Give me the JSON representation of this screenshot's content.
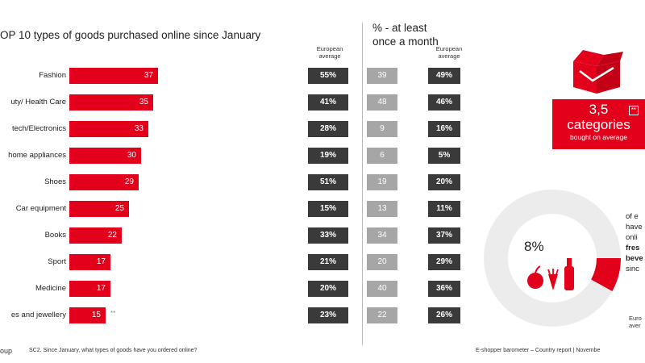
{
  "title": "OP 10 types of goods purchased online since January",
  "freq_title_line1": "% - at least",
  "freq_title_line2": "once a month",
  "eu_header_line1": "European",
  "eu_header_line2": "average",
  "colors": {
    "accent": "#e3001b",
    "dark": "#3a3a3a",
    "grey": "#a6a6a6"
  },
  "chart_data": {
    "type": "bar",
    "orientation": "horizontal",
    "categories": [
      "Fashion",
      "uty/ Health Care",
      "tech/Electronics",
      "home appliances",
      "Shoes",
      "Car equipment",
      "Books",
      "Sport",
      "Medicine",
      "es and jewellery"
    ],
    "values": [
      37,
      35,
      33,
      30,
      29,
      25,
      22,
      17,
      17,
      15
    ],
    "value_labels": [
      "37",
      "35",
      "33",
      "30",
      "29",
      "25",
      "22",
      "17",
      "17",
      "15"
    ],
    "xlim": [
      0,
      50
    ],
    "last_marker": "**",
    "european_average": [
      "55%",
      "41%",
      "28%",
      "19%",
      "51%",
      "15%",
      "33%",
      "21%",
      "20%",
      "23%"
    ],
    "monthly_values": [
      39,
      48,
      9,
      6,
      19,
      13,
      34,
      20,
      40,
      22
    ],
    "monthly_labels": [
      "39",
      "48",
      "9",
      "6",
      "19",
      "13",
      "34",
      "20",
      "40",
      "22"
    ],
    "monthly_eu_average": [
      "49%",
      "46%",
      "16%",
      "5%",
      "20%",
      "11%",
      "37%",
      "29%",
      "36%",
      "26%"
    ]
  },
  "categories_box": {
    "number": "3,5",
    "word": "categories",
    "sub": "bought on average",
    "marker": "**"
  },
  "fresh": {
    "value": 8,
    "label": "8%",
    "text_lines": [
      "of e",
      "have",
      "onli",
      "fres",
      "beve",
      "sinc"
    ],
    "eu_lines": [
      "Euro",
      "aver"
    ]
  },
  "footer": {
    "left": "oup",
    "question": "SC2. Since January, what types of goods have you ordered online?",
    "right": "E-shopper barometer – Country report | Novembe"
  }
}
